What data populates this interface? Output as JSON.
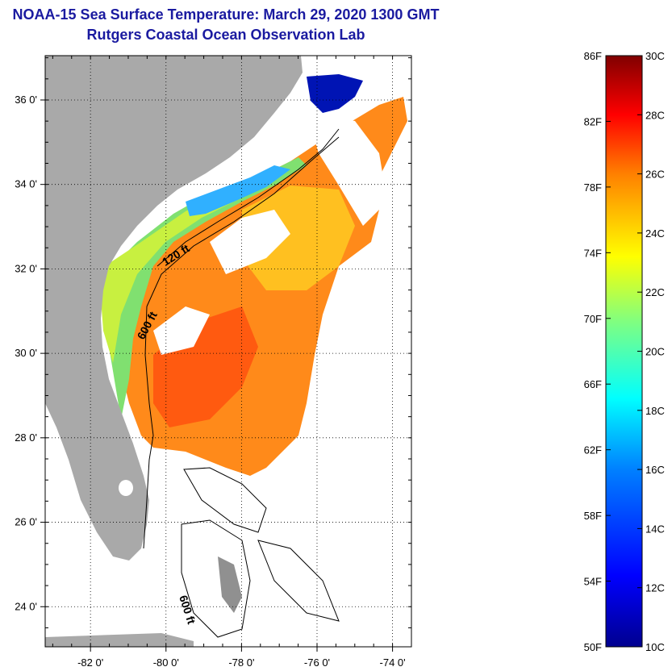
{
  "header": {
    "title": "NOAA-15 Sea Surface Temperature:  March 29, 2020 1300 GMT",
    "subtitle": "Rutgers Coastal Ocean Observation Lab"
  },
  "map": {
    "lat_ticks": [
      {
        "value": 36,
        "label": "36 0'"
      },
      {
        "value": 34,
        "label": "34 0'"
      },
      {
        "value": 32,
        "label": "32 0'"
      },
      {
        "value": 30,
        "label": "30 0'"
      },
      {
        "value": 28,
        "label": "28 0'"
      },
      {
        "value": 26,
        "label": "26 0'"
      },
      {
        "value": 24,
        "label": "24 0'"
      }
    ],
    "lon_ticks": [
      {
        "value": -82,
        "label": "-82 0'"
      },
      {
        "value": -80,
        "label": "-80 0'"
      },
      {
        "value": -78,
        "label": "-78 0'"
      },
      {
        "value": -76,
        "label": "-76 0'"
      },
      {
        "value": -74,
        "label": "-74 0'"
      }
    ],
    "contours": {
      "shelf_120": "120 ft",
      "shelf_600": "600 ft",
      "bahamas_600": "600 ft"
    },
    "colors": {
      "land": "#a9a9a9",
      "grid": "#000000"
    }
  },
  "colorbar": {
    "f_labels": [
      "86F",
      "82F",
      "78F",
      "74F",
      "70F",
      "66F",
      "62F",
      "58F",
      "54F",
      "50F"
    ],
    "c_labels": [
      "30C",
      "28C",
      "26C",
      "24C",
      "22C",
      "20C",
      "18C",
      "16C",
      "14C",
      "12C",
      "10C"
    ],
    "palette": [
      "#00008f",
      "#0000ff",
      "#0080ff",
      "#00ffff",
      "#80ff80",
      "#ffff00",
      "#ff8000",
      "#ff0000",
      "#800000"
    ]
  }
}
